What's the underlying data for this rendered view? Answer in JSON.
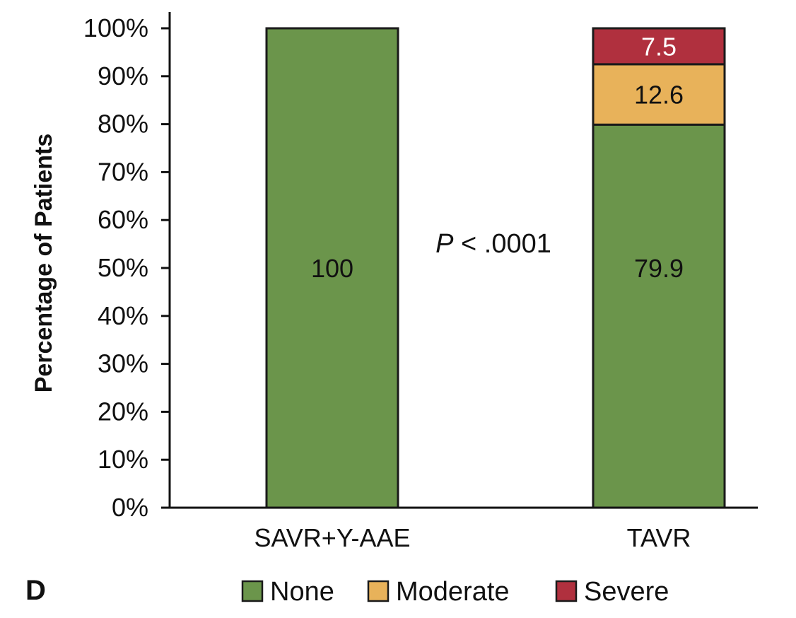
{
  "panel_label": "D",
  "chart_data": {
    "type": "bar",
    "stacked": true,
    "title": "",
    "xlabel": "",
    "ylabel": "Percentage of Patients",
    "ylim": [
      0,
      100
    ],
    "yticks": [
      "0%",
      "10%",
      "20%",
      "30%",
      "40%",
      "50%",
      "60%",
      "70%",
      "80%",
      "90%",
      "100%"
    ],
    "categories": [
      "SAVR+Y-AAE",
      "TAVR"
    ],
    "series": [
      {
        "name": "None",
        "color": "#6b954b",
        "label_color": "#111111",
        "values": [
          100,
          79.9
        ],
        "labels": [
          "100",
          "79.9"
        ]
      },
      {
        "name": "Moderate",
        "color": "#e8b25a",
        "label_color": "#111111",
        "values": [
          0,
          12.6
        ],
        "labels": [
          "",
          "12.6"
        ]
      },
      {
        "name": "Severe",
        "color": "#b0303e",
        "label_color": "#ffffff",
        "values": [
          0,
          7.5
        ],
        "labels": [
          "",
          "7.5"
        ]
      }
    ],
    "annotation": {
      "italic": "P",
      "rest": " < .0001"
    },
    "legend_position": "bottom"
  }
}
